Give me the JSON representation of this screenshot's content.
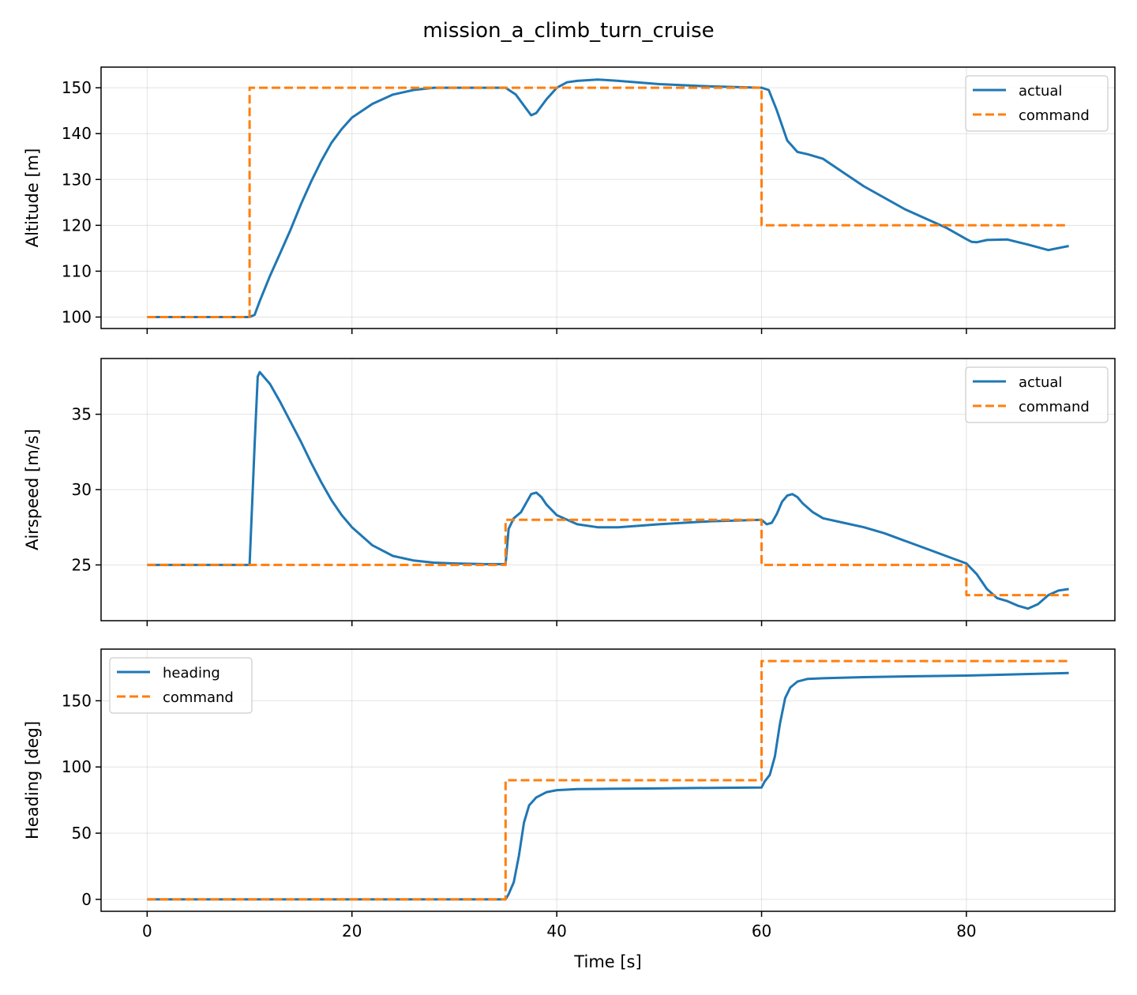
{
  "chart_data": {
    "title": "mission_a_climb_turn_cruise",
    "type": "line",
    "shared_x": true,
    "xlabel": "Time [s]",
    "xlim": [
      -4.5,
      94.5
    ],
    "xticks": [
      0,
      20,
      40,
      60,
      80
    ],
    "grid": true,
    "colors": {
      "actual": "#1f77b4",
      "command": "#ff7f0e"
    },
    "subplots": [
      {
        "ylabel": "Altitude [m]",
        "ylim": [
          97.5,
          154.5
        ],
        "yticks": [
          100,
          110,
          120,
          130,
          140,
          150
        ],
        "legend": "upper right",
        "series": [
          {
            "name": "actual",
            "style": "solid",
            "x": [
              0,
              10,
              10.5,
              11,
              12,
              13,
              14,
              15,
              16,
              17,
              18,
              19,
              20,
              22,
              24,
              26,
              28,
              30,
              33,
              35,
              36,
              37,
              37.5,
              38,
              39,
              40,
              41,
              42,
              44,
              46,
              50,
              55,
              60,
              60.7,
              61.5,
              62.5,
              63.5,
              64.5,
              66,
              68,
              70,
              74,
              78,
              80,
              80.5,
              81,
              82,
              84,
              86,
              88,
              90
            ],
            "y": [
              100,
              100,
              100.5,
              103.5,
              109,
              114,
              119,
              124.5,
              129.5,
              134,
              138,
              141,
              143.5,
              146.5,
              148.5,
              149.5,
              150,
              150,
              150,
              150,
              148.5,
              145.5,
              144,
              144.5,
              147.5,
              150,
              151.2,
              151.5,
              151.8,
              151.5,
              150.8,
              150.3,
              150,
              149.5,
              145,
              138.5,
              136,
              135.5,
              134.5,
              131.5,
              128.5,
              123.5,
              119.5,
              117,
              116.4,
              116.3,
              116.8,
              116.9,
              115.8,
              114.6,
              115.5
            ]
          },
          {
            "name": "command",
            "style": "dashed",
            "x": [
              0,
              10,
              10,
              60,
              60,
              90
            ],
            "y": [
              100,
              100,
              150,
              150,
              120,
              120
            ]
          }
        ]
      },
      {
        "ylabel": "Airspeed [m/s]",
        "ylim": [
          21.3,
          38.7
        ],
        "yticks": [
          25,
          30,
          35
        ],
        "legend": "upper right",
        "series": [
          {
            "name": "actual",
            "style": "solid",
            "x": [
              0,
              10,
              10.5,
              10.8,
              11,
              12,
              13,
              14,
              15,
              16,
              17,
              18,
              19,
              20,
              22,
              24,
              26,
              28,
              30,
              33,
              35,
              35.3,
              35.8,
              36.5,
              37,
              37.5,
              38,
              38.5,
              39,
              40,
              42,
              44,
              46,
              50,
              55,
              60,
              60.5,
              61,
              61.5,
              62,
              62.5,
              63,
              63.5,
              64,
              65,
              66,
              68,
              70,
              72,
              74,
              76,
              78,
              80,
              81,
              82,
              83,
              84,
              85,
              86,
              87,
              88,
              89,
              90
            ],
            "y": [
              25,
              25,
              33,
              37.5,
              37.8,
              37,
              35.8,
              34.5,
              33.2,
              31.8,
              30.5,
              29.3,
              28.3,
              27.5,
              26.3,
              25.6,
              25.3,
              25.15,
              25.1,
              25.05,
              25.05,
              27.4,
              28.1,
              28.5,
              29.1,
              29.7,
              29.8,
              29.5,
              29,
              28.3,
              27.7,
              27.5,
              27.5,
              27.7,
              27.9,
              28,
              27.7,
              27.8,
              28.4,
              29.2,
              29.6,
              29.7,
              29.5,
              29.1,
              28.5,
              28.1,
              27.8,
              27.5,
              27.1,
              26.6,
              26.1,
              25.6,
              25.1,
              24.4,
              23.4,
              22.8,
              22.6,
              22.3,
              22.1,
              22.4,
              23,
              23.3,
              23.4
            ]
          },
          {
            "name": "command",
            "style": "dashed",
            "x": [
              0,
              35,
              35,
              60,
              60,
              80,
              80,
              90
            ],
            "y": [
              25,
              25,
              28,
              28,
              25,
              25,
              23,
              23
            ]
          }
        ]
      },
      {
        "ylabel": "Heading [deg]",
        "ylim": [
          -9,
          189
        ],
        "yticks": [
          0,
          50,
          100,
          150
        ],
        "legend": "upper left",
        "series": [
          {
            "name": "heading",
            "style": "solid",
            "x": [
              0,
              35,
              35.3,
              35.8,
              36.3,
              36.8,
              37.3,
              38,
              39,
              40,
              42,
              45,
              50,
              55,
              60,
              60.3,
              60.8,
              61.3,
              61.8,
              62.3,
              62.8,
              63.5,
              64.5,
              66,
              70,
              75,
              80,
              85,
              90
            ],
            "y": [
              0,
              0,
              4,
              13,
              33,
              58,
              71,
              77,
              81,
              82.5,
              83.3,
              83.5,
              83.8,
              84.2,
              84.5,
              89,
              94,
              108,
              133,
              152,
              160,
              164.5,
              166.5,
              167,
              167.8,
              168.5,
              169,
              170,
              171
            ]
          },
          {
            "name": "command",
            "style": "dashed",
            "x": [
              0,
              35,
              35,
              60,
              60,
              90
            ],
            "y": [
              0,
              0,
              90,
              90,
              180,
              180
            ]
          }
        ]
      }
    ]
  }
}
